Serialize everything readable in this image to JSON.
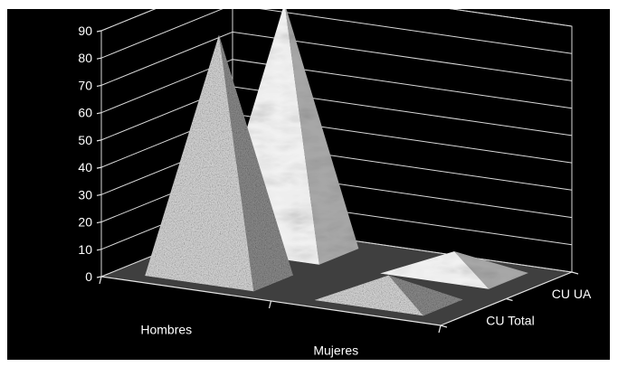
{
  "chart_data": {
    "type": "bar",
    "style": "3d-pyramid",
    "categories": [
      "Hombres",
      "Mujeres"
    ],
    "series": [
      {
        "name": "CU Total",
        "values": [
          88,
          9
        ],
        "texture": "granite"
      },
      {
        "name": "CU UA",
        "values": [
          90,
          8
        ],
        "texture": "marble"
      }
    ],
    "series_axis_labels": [
      "CU Total",
      "CU UA"
    ],
    "y_ticks": [
      "0",
      "10",
      "20",
      "30",
      "40",
      "50",
      "60",
      "70",
      "80",
      "90"
    ],
    "ylim": [
      0,
      90
    ],
    "grid": true,
    "legend": "none",
    "colors": {
      "background": "#000000",
      "floor": "#3f3f3f",
      "text": "#ffffff",
      "grid": "#d9d9d9"
    }
  }
}
